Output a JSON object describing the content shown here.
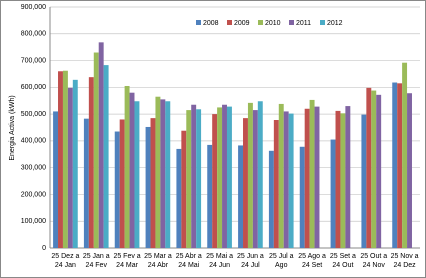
{
  "chart_data": {
    "type": "bar",
    "y_label": "Energia Activa (kWh)",
    "categories": [
      "25 Dez a 24 Jan",
      "25 Jan a 24 Fev",
      "25 Fev a 24 Mar",
      "25 Mar a 24 Abr",
      "25 Abr a 24 Mai",
      "25 Mai a 24 Jun",
      "25 Jun a 24 Jul",
      "25 Jul a Ago",
      "25 Ago a 24 Set",
      "25 Set a 24 Out",
      "25 Out a 24 Nov",
      "25 Nov a 24 Dez"
    ],
    "series": [
      {
        "name": "2008",
        "color": "#4f81bd",
        "values": [
          510000,
          483000,
          435000,
          452000,
          370000,
          385000,
          383000,
          363000,
          378000,
          405000,
          498000,
          618000
        ]
      },
      {
        "name": "2009",
        "color": "#c0504d",
        "values": [
          660000,
          638000,
          480000,
          485000,
          438000,
          500000,
          485000,
          478000,
          520000,
          512000,
          598000,
          615000
        ]
      },
      {
        "name": "2010",
        "color": "#9bbb59",
        "values": [
          662000,
          730000,
          605000,
          565000,
          515000,
          525000,
          542000,
          538000,
          553000,
          503000,
          588000,
          692000
        ]
      },
      {
        "name": "2011",
        "color": "#8064a2",
        "values": [
          598000,
          768000,
          580000,
          555000,
          535000,
          535000,
          515000,
          510000,
          528000,
          530000,
          572000,
          578000
        ]
      },
      {
        "name": "2012",
        "color": "#4bacc6",
        "values": [
          628000,
          683000,
          548000,
          548000,
          518000,
          528000,
          548000,
          502000,
          null,
          null,
          null,
          null
        ]
      }
    ],
    "ylim": [
      0,
      900000
    ],
    "yticks": [
      {
        "value": 0,
        "label": "0"
      },
      {
        "value": 100000,
        "label": "100,000"
      },
      {
        "value": 200000,
        "label": "200,000"
      },
      {
        "value": 300000,
        "label": "300,000"
      },
      {
        "value": 400000,
        "label": "400,000"
      },
      {
        "value": 500000,
        "label": "500,000"
      },
      {
        "value": 600000,
        "label": "600,000"
      },
      {
        "value": 700000,
        "label": "700,000"
      },
      {
        "value": 800000,
        "label": "800,000"
      },
      {
        "value": 900000,
        "label": "900,000"
      }
    ],
    "grid": true
  }
}
